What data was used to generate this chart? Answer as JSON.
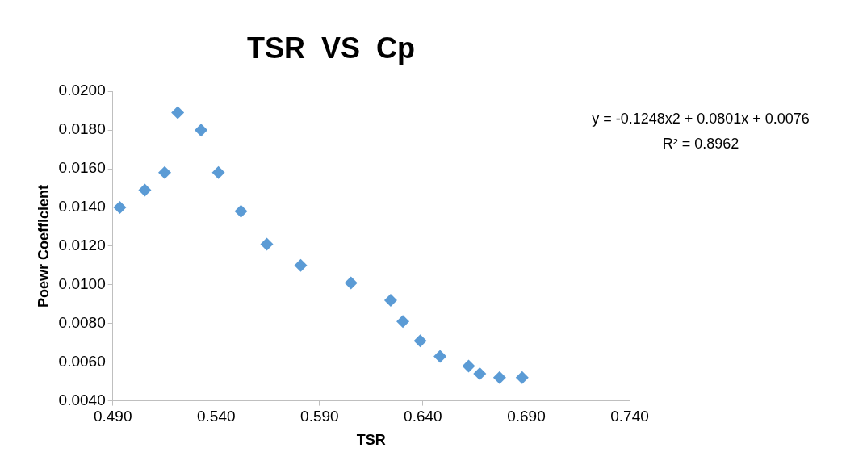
{
  "chart_data": {
    "type": "scatter",
    "title": "TSR  VS  Cp",
    "xlabel": "TSR",
    "ylabel": "Poewr Coefficient",
    "series": [
      {
        "color": "#5b9bd5",
        "x": [
          0.4934,
          0.5055,
          0.5151,
          0.5214,
          0.5327,
          0.5411,
          0.552,
          0.5645,
          0.5809,
          0.6052,
          0.6244,
          0.6303,
          0.6387,
          0.6483,
          0.6621,
          0.6675,
          0.6771,
          0.688
        ],
        "values": [
          0.014,
          0.0149,
          0.0158,
          0.0189,
          0.018,
          0.0158,
          0.0138,
          0.0121,
          0.011,
          0.0101,
          0.0092,
          0.0081,
          0.0071,
          0.0063,
          0.0058,
          0.0054,
          0.0052,
          0.0052
        ]
      }
    ],
    "xlim": [
      0.49,
      0.74
    ],
    "xticks": [
      {
        "value": 0.49,
        "label": "0.490"
      },
      {
        "value": 0.54,
        "label": "0.540"
      },
      {
        "value": 0.59,
        "label": "0.590"
      },
      {
        "value": 0.64,
        "label": "0.640"
      },
      {
        "value": 0.69,
        "label": "0.690"
      },
      {
        "value": 0.74,
        "label": "0.740"
      }
    ],
    "ylim": [
      0.004,
      0.02
    ],
    "yticks": [
      {
        "value": 0.004,
        "label": "0.0040"
      },
      {
        "value": 0.006,
        "label": "0.0060"
      },
      {
        "value": 0.008,
        "label": "0.0080"
      },
      {
        "value": 0.01,
        "label": "0.0100"
      },
      {
        "value": 0.012,
        "label": "0.0120"
      },
      {
        "value": 0.014,
        "label": "0.0140"
      },
      {
        "value": 0.016,
        "label": "0.0160"
      },
      {
        "value": 0.018,
        "label": "0.0180"
      },
      {
        "value": 0.02,
        "label": "0.0200"
      }
    ],
    "annotations": [
      "y = -0.1248x2 + 0.0801x + 0.0076",
      "R² = 0.8962"
    ],
    "marker": "diamond",
    "grid": false,
    "legend": false
  }
}
